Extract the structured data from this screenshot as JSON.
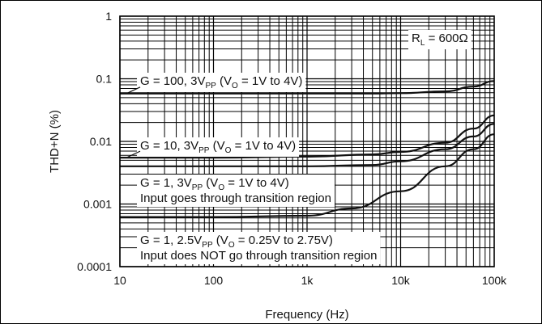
{
  "chart_data": {
    "type": "line",
    "title": "",
    "xlabel": "Frequency (Hz)",
    "ylabel": "THD+N (%)",
    "x_scale": "log",
    "y_scale": "log",
    "xlim": [
      10,
      100000
    ],
    "ylim": [
      0.0001,
      1
    ],
    "grid": true,
    "x_ticks": [
      "10",
      "100",
      "1k",
      "10k",
      "100k"
    ],
    "x_tick_values": [
      10,
      100,
      1000,
      10000,
      100000
    ],
    "y_ticks": [
      "1",
      "0.1",
      "0.01",
      "0.001",
      "0.0001"
    ],
    "y_tick_values": [
      1,
      0.1,
      0.01,
      0.001,
      0.0001
    ],
    "series": [
      {
        "label_line1": {
          "parts": [
            "G = 100, 3V",
            "PP",
            " (V",
            "O",
            " = 1V to 4V)"
          ]
        },
        "x": [
          10,
          100,
          1000,
          5000,
          10000,
          30000,
          60000,
          100000
        ],
        "y": [
          0.058,
          0.058,
          0.058,
          0.058,
          0.059,
          0.063,
          0.075,
          0.092
        ]
      },
      {
        "label_line1": {
          "parts": [
            "G = 10, 3V",
            "PP",
            " (V",
            "O",
            " = 1V to 4V)"
          ]
        },
        "x": [
          10,
          100,
          1000,
          5000,
          10000,
          30000,
          60000,
          100000
        ],
        "y": [
          0.0055,
          0.0055,
          0.0057,
          0.0062,
          0.0068,
          0.0095,
          0.016,
          0.026
        ]
      },
      {
        "label_line1": {
          "parts": [
            "G = 1, 3V",
            "PP",
            " (V",
            "O",
            " = 1V to 4V)"
          ]
        },
        "label_line2": "Input goes through transition region",
        "x": [
          10,
          100,
          1000,
          5000,
          10000,
          30000,
          60000,
          100000
        ],
        "y": [
          0.004,
          0.004,
          0.004,
          0.0042,
          0.0048,
          0.0075,
          0.012,
          0.019
        ]
      },
      {
        "label_line1": {
          "parts": [
            "G = 1, 2.5V",
            "PP",
            " (V",
            "O",
            " = 0.25V to 2.75V)"
          ]
        },
        "label_line2": "Input does NOT go through transition region",
        "x": [
          10,
          100,
          1000,
          3000,
          10000,
          30000,
          60000,
          100000
        ],
        "y": [
          0.00062,
          0.00062,
          0.00065,
          0.00085,
          0.0016,
          0.004,
          0.0075,
          0.013
        ]
      }
    ],
    "annotation": {
      "parts": [
        "R",
        "L",
        " = 600Ω"
      ]
    }
  }
}
